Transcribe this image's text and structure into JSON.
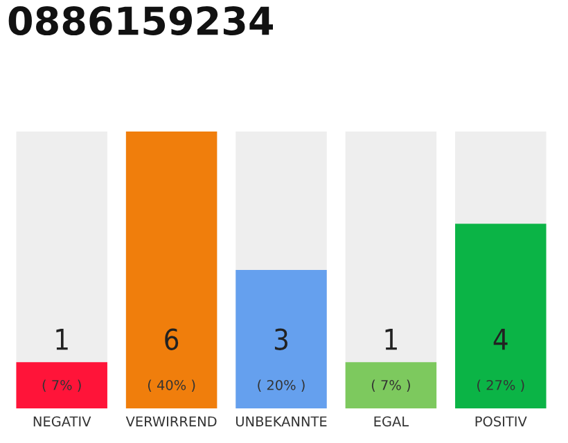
{
  "chart_data": {
    "type": "bar",
    "title": "0886159234",
    "categories": [
      "NEGATIV",
      "VERWIRREND",
      "UNBEKANNTE",
      "EGAL",
      "POSITIV"
    ],
    "values": [
      1,
      6,
      3,
      1,
      4
    ],
    "colors": [
      "#ff1439",
      "#f07e0c",
      "#65a0ee",
      "#7dc95e",
      "#0bb446"
    ],
    "data_labels": true,
    "annotations": [
      "( 7% )",
      "( 40% )",
      "( 20% )",
      "( 7% )",
      "( 27% )"
    ],
    "grid": false,
    "legend": false
  }
}
